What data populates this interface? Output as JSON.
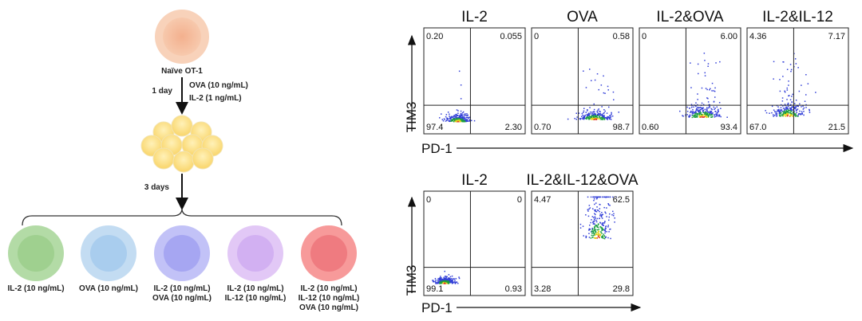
{
  "schematic": {
    "naive_label": "Naïve OT-1",
    "step1_time": "1 day",
    "step1_treatment_line1": "OVA (10 ng/mL)",
    "step1_treatment_line2": "IL-2 (1 ng/mL)",
    "step2_time": "3 days",
    "conditions": [
      {
        "lines": [
          "IL-2 (10 ng/mL)"
        ],
        "fill": "#b3dba6",
        "core": "#9fd08f"
      },
      {
        "lines": [
          "OVA (10 ng/mL)"
        ],
        "fill": "#c3dcf2",
        "core": "#a9cdee"
      },
      {
        "lines": [
          "IL-2 (10 ng/mL)",
          "OVA (10 ng/mL)"
        ],
        "fill": "#c2c2f7",
        "core": "#a6a6f2"
      },
      {
        "lines": [
          "IL-2 (10 ng/mL)",
          "IL-12 (10 ng/mL)"
        ],
        "fill": "#e2c8f6",
        "core": "#d2b0f2"
      },
      {
        "lines": [
          "IL-2 (10 ng/mL)",
          "IL-12 (10 ng/mL)",
          "OVA (10 ng/mL)"
        ],
        "fill": "#f79a9a",
        "core": "#ef7b80"
      }
    ],
    "colors": {
      "naive_fill": "#f5c2a3",
      "naive_core": "#f0aa83",
      "cluster_fill": "#fbe08a"
    }
  },
  "flow": {
    "y_axis_label": "TIM3",
    "x_axis_label": "PD-1",
    "row1": [
      {
        "title": "IL-2",
        "q": {
          "ul": "0.20",
          "ur": "0.055",
          "ll": "97.4",
          "lr": "2.30"
        },
        "pdl_pos": 0.33,
        "tim3_level": 0.12,
        "pdl_spread": 0.12,
        "tim3_spread": 0.06,
        "up_tail": 0.05
      },
      {
        "title": "OVA",
        "q": {
          "ul": "0",
          "ur": "0.58",
          "ll": "0.70",
          "lr": "98.7"
        },
        "pdl_pos": 0.62,
        "tim3_level": 0.14,
        "pdl_spread": 0.16,
        "tim3_spread": 0.07,
        "up_tail": 0.12
      },
      {
        "title": "IL-2&OVA",
        "q": {
          "ul": "0",
          "ur": "6.00",
          "ll": "0.60",
          "lr": "93.4"
        },
        "pdl_pos": 0.62,
        "tim3_level": 0.16,
        "pdl_spread": 0.18,
        "tim3_spread": 0.09,
        "up_tail": 0.35
      },
      {
        "title": "IL-2&IL-12",
        "q": {
          "ul": "4.36",
          "ur": "7.17",
          "ll": "67.0",
          "lr": "21.5"
        },
        "pdl_pos": 0.4,
        "tim3_level": 0.17,
        "pdl_spread": 0.16,
        "tim3_spread": 0.1,
        "up_tail": 0.45
      }
    ],
    "row2": [
      {
        "title": "IL-2",
        "q": {
          "ul": "0",
          "ur": "0",
          "ll": "99.1",
          "lr": "0.93"
        },
        "pdl_pos": 0.2,
        "tim3_level": 0.12,
        "pdl_spread": 0.1,
        "tim3_spread": 0.05,
        "up_tail": 0.02
      },
      {
        "title": "IL-2&IL-12&OVA",
        "q": {
          "ul": "4.47",
          "ur": "62.5",
          "ll": "3.28",
          "lr": "29.8"
        },
        "pdl_pos": 0.65,
        "tim3_level": 0.55,
        "pdl_spread": 0.12,
        "tim3_spread": 0.25,
        "up_tail": 0.6
      }
    ]
  }
}
